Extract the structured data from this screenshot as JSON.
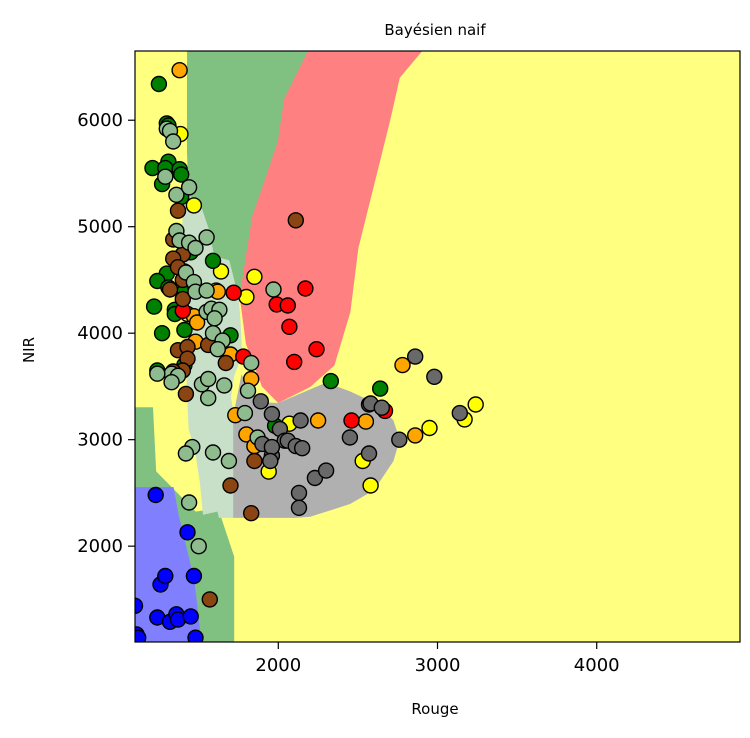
{
  "chart_data": {
    "type": "scatter",
    "title": "Bayésien naif",
    "xlabel": "Rouge",
    "ylabel": "NIR",
    "xlim": [
      1100,
      4900
    ],
    "ylim": [
      1100,
      6650
    ],
    "xticks": [
      2000,
      3000,
      4000
    ],
    "yticks": [
      2000,
      3000,
      4000,
      5000,
      6000
    ],
    "xtick_labels": [
      "2000",
      "3000",
      "4000"
    ],
    "ytick_labels": [
      "2000",
      "3000",
      "4000",
      "5000",
      "6000"
    ],
    "grid": false,
    "colors": {
      "background": "#ffff80",
      "green_region": "#80c080",
      "red_region": "#ff8080",
      "blue_region": "#8080ff",
      "lightgreen_region": "#c8e0c8",
      "gray_region": "#b0b0b0",
      "yellow": "#ffff00",
      "orange": "#ffa500",
      "green": "#008000",
      "red": "#ff0000",
      "blue": "#0000ff",
      "brown": "#8b4513",
      "lightgreen": "#8fbc8f",
      "gray": "#696969"
    },
    "regions": [
      {
        "class": "green",
        "points": [
          [
            1430,
            6650
          ],
          [
            1430,
            5700
          ],
          [
            1440,
            5280
          ],
          [
            1520,
            5150
          ],
          [
            1550,
            4950
          ],
          [
            1560,
            4730
          ],
          [
            1600,
            4680
          ],
          [
            1620,
            4630
          ],
          [
            1660,
            4620
          ],
          [
            1690,
            4600
          ],
          [
            1720,
            4480
          ],
          [
            1760,
            4350
          ],
          [
            1840,
            5100
          ],
          [
            1910,
            5400
          ],
          [
            2000,
            5800
          ],
          [
            2040,
            6200
          ],
          [
            2190,
            6650
          ]
        ]
      },
      {
        "class": "red",
        "points": [
          [
            2190,
            6650
          ],
          [
            2040,
            6200
          ],
          [
            2000,
            5800
          ],
          [
            1910,
            5400
          ],
          [
            1840,
            5100
          ],
          [
            1760,
            4350
          ],
          [
            1800,
            3900
          ],
          [
            1900,
            3500
          ],
          [
            2000,
            3350
          ],
          [
            2200,
            3500
          ],
          [
            2350,
            3700
          ],
          [
            2450,
            4200
          ],
          [
            2500,
            4800
          ],
          [
            2600,
            5400
          ],
          [
            2700,
            6000
          ],
          [
            2760,
            6400
          ],
          [
            2900,
            6650
          ]
        ]
      },
      {
        "class": "green",
        "points": [
          [
            1100,
            3300
          ],
          [
            1210,
            3300
          ],
          [
            1230,
            2700
          ],
          [
            1480,
            2320
          ],
          [
            1620,
            2350
          ],
          [
            1720,
            1900
          ],
          [
            1720,
            1100
          ],
          [
            1100,
            1100
          ]
        ]
      },
      {
        "class": "blue",
        "points": [
          [
            1100,
            2550
          ],
          [
            1340,
            2550
          ],
          [
            1370,
            2300
          ],
          [
            1470,
            1680
          ],
          [
            1510,
            1150
          ],
          [
            1510,
            1100
          ],
          [
            1100,
            1100
          ]
        ]
      },
      {
        "class": "lightgreen",
        "points": [
          [
            1430,
            5500
          ],
          [
            1440,
            5290
          ],
          [
            1510,
            5200
          ],
          [
            1560,
            4980
          ],
          [
            1590,
            4760
          ],
          [
            1640,
            4700
          ],
          [
            1690,
            4680
          ],
          [
            1720,
            4500
          ],
          [
            1750,
            4300
          ],
          [
            1760,
            4100
          ],
          [
            1770,
            3800
          ],
          [
            1720,
            3600
          ],
          [
            1700,
            3400
          ],
          [
            1720,
            3200
          ],
          [
            1720,
            2270
          ],
          [
            1630,
            2270
          ],
          [
            1620,
            2330
          ],
          [
            1530,
            2300
          ],
          [
            1510,
            2600
          ],
          [
            1480,
            2900
          ],
          [
            1440,
            3100
          ],
          [
            1420,
            3800
          ],
          [
            1410,
            4400
          ],
          [
            1400,
            5000
          ],
          [
            1410,
            5400
          ]
        ]
      },
      {
        "class": "gray",
        "points": [
          [
            1720,
            3220
          ],
          [
            1720,
            2270
          ],
          [
            2110,
            2270
          ],
          [
            2200,
            2280
          ],
          [
            2450,
            2400
          ],
          [
            2600,
            2530
          ],
          [
            2720,
            2800
          ],
          [
            2760,
            3000
          ],
          [
            2720,
            3180
          ],
          [
            2620,
            3330
          ],
          [
            2450,
            3450
          ],
          [
            2300,
            3530
          ],
          [
            2000,
            3340
          ],
          [
            1850,
            3350
          ],
          [
            1800,
            3500
          ],
          [
            1770,
            3600
          ]
        ]
      }
    ],
    "series": [
      {
        "color": "yellow",
        "points": [
          [
            1385,
            5870
          ],
          [
            1430,
            4180
          ],
          [
            1470,
            5200
          ],
          [
            1610,
            4400
          ],
          [
            1640,
            4580
          ],
          [
            1800,
            4340
          ],
          [
            1850,
            4530
          ],
          [
            1940,
            2700
          ],
          [
            2070,
            3150
          ],
          [
            2530,
            2800
          ],
          [
            2580,
            2570
          ],
          [
            2950,
            3110
          ],
          [
            3170,
            3190
          ],
          [
            3240,
            3330
          ]
        ]
      },
      {
        "color": "orange",
        "points": [
          [
            1380,
            6470
          ],
          [
            1410,
            4580
          ],
          [
            1470,
            4160
          ],
          [
            1480,
            3920
          ],
          [
            1490,
            4100
          ],
          [
            1620,
            4390
          ],
          [
            1700,
            3800
          ],
          [
            1730,
            3230
          ],
          [
            1800,
            3050
          ],
          [
            1830,
            3570
          ],
          [
            1850,
            2940
          ],
          [
            2250,
            3180
          ],
          [
            2550,
            3170
          ],
          [
            2780,
            3700
          ],
          [
            2860,
            3040
          ]
        ]
      },
      {
        "color": "green",
        "points": [
          [
            1250,
            6340
          ],
          [
            1300,
            5970
          ],
          [
            1310,
            5950
          ],
          [
            1210,
            5550
          ],
          [
            1310,
            5610
          ],
          [
            1290,
            5550
          ],
          [
            1380,
            5540
          ],
          [
            1390,
            5490
          ],
          [
            1270,
            5400
          ],
          [
            1390,
            5280
          ],
          [
            1450,
            4760
          ],
          [
            1300,
            4560
          ],
          [
            1240,
            4490
          ],
          [
            1310,
            4430
          ],
          [
            1410,
            4390
          ],
          [
            1220,
            4250
          ],
          [
            1350,
            4220
          ],
          [
            1270,
            4000
          ],
          [
            1410,
            4030
          ],
          [
            1350,
            4180
          ],
          [
            1240,
            3650
          ],
          [
            1410,
            3700
          ],
          [
            1590,
            4680
          ],
          [
            1700,
            3980
          ],
          [
            1980,
            3130
          ],
          [
            2330,
            3550
          ],
          [
            2640,
            3480
          ]
        ]
      },
      {
        "color": "red",
        "points": [
          [
            1400,
            4210
          ],
          [
            1720,
            4380
          ],
          [
            1780,
            3780
          ],
          [
            1990,
            4270
          ],
          [
            2060,
            4260
          ],
          [
            2070,
            4060
          ],
          [
            2100,
            3730
          ],
          [
            2170,
            4420
          ],
          [
            2240,
            3850
          ],
          [
            2460,
            3180
          ],
          [
            2670,
            3270
          ]
        ]
      },
      {
        "color": "blue",
        "points": [
          [
            1100,
            1440
          ],
          [
            1110,
            1170
          ],
          [
            1120,
            1140
          ],
          [
            1230,
            2480
          ],
          [
            1240,
            1330
          ],
          [
            1260,
            1640
          ],
          [
            1290,
            1720
          ],
          [
            1320,
            1290
          ],
          [
            1360,
            1360
          ],
          [
            1370,
            1310
          ],
          [
            1430,
            2130
          ],
          [
            1450,
            1340
          ],
          [
            1470,
            1720
          ],
          [
            1480,
            1140
          ]
        ]
      },
      {
        "color": "brown",
        "points": [
          [
            1370,
            5150
          ],
          [
            1340,
            4880
          ],
          [
            1410,
            4840
          ],
          [
            1400,
            4740
          ],
          [
            1340,
            4700
          ],
          [
            1370,
            4620
          ],
          [
            1400,
            4500
          ],
          [
            1320,
            4410
          ],
          [
            1400,
            4320
          ],
          [
            1480,
            4420
          ],
          [
            1370,
            3840
          ],
          [
            1430,
            3870
          ],
          [
            1430,
            3760
          ],
          [
            1400,
            3650
          ],
          [
            1340,
            3640
          ],
          [
            1420,
            3430
          ],
          [
            1560,
            3890
          ],
          [
            1670,
            3720
          ],
          [
            1700,
            2570
          ],
          [
            1830,
            2310
          ],
          [
            2110,
            5060
          ],
          [
            1850,
            2800
          ],
          [
            1570,
            1500
          ]
        ]
      },
      {
        "color": "lightgreen",
        "points": [
          [
            1300,
            5920
          ],
          [
            1320,
            5900
          ],
          [
            1340,
            5800
          ],
          [
            1290,
            5470
          ],
          [
            1360,
            5300
          ],
          [
            1440,
            5370
          ],
          [
            1360,
            4960
          ],
          [
            1380,
            4870
          ],
          [
            1440,
            4850
          ],
          [
            1480,
            4800
          ],
          [
            1550,
            4900
          ],
          [
            1420,
            4570
          ],
          [
            1470,
            4480
          ],
          [
            1480,
            4390
          ],
          [
            1550,
            4400
          ],
          [
            1550,
            4200
          ],
          [
            1580,
            4230
          ],
          [
            1630,
            4220
          ],
          [
            1590,
            4000
          ],
          [
            1650,
            3930
          ],
          [
            1620,
            3850
          ],
          [
            1330,
            3620
          ],
          [
            1370,
            3600
          ],
          [
            1330,
            3540
          ],
          [
            1520,
            3520
          ],
          [
            1560,
            3570
          ],
          [
            1560,
            3390
          ],
          [
            1660,
            3510
          ],
          [
            1460,
            2930
          ],
          [
            1420,
            2870
          ],
          [
            1590,
            2880
          ],
          [
            1690,
            2800
          ],
          [
            1500,
            2000
          ],
          [
            1810,
            3460
          ],
          [
            1970,
            4410
          ],
          [
            1440,
            2410
          ],
          [
            1830,
            3720
          ],
          [
            1240,
            3620
          ],
          [
            1600,
            4140
          ],
          [
            1870,
            3020
          ],
          [
            1790,
            3250
          ]
        ]
      },
      {
        "color": "gray",
        "points": [
          [
            1890,
            3360
          ],
          [
            1900,
            2960
          ],
          [
            1960,
            3240
          ],
          [
            2010,
            3100
          ],
          [
            2040,
            2990
          ],
          [
            1960,
            2850
          ],
          [
            1960,
            2930
          ],
          [
            2060,
            2990
          ],
          [
            2110,
            2940
          ],
          [
            2140,
            3180
          ],
          [
            2150,
            2920
          ],
          [
            2230,
            2640
          ],
          [
            2300,
            2710
          ],
          [
            2450,
            3020
          ],
          [
            2570,
            2870
          ],
          [
            2570,
            3330
          ],
          [
            2580,
            3340
          ],
          [
            2650,
            3300
          ],
          [
            2760,
            3000
          ],
          [
            2860,
            3780
          ],
          [
            2980,
            3590
          ],
          [
            3140,
            3250
          ],
          [
            2130,
            2500
          ],
          [
            2130,
            2360
          ],
          [
            1950,
            2800
          ]
        ]
      }
    ]
  }
}
